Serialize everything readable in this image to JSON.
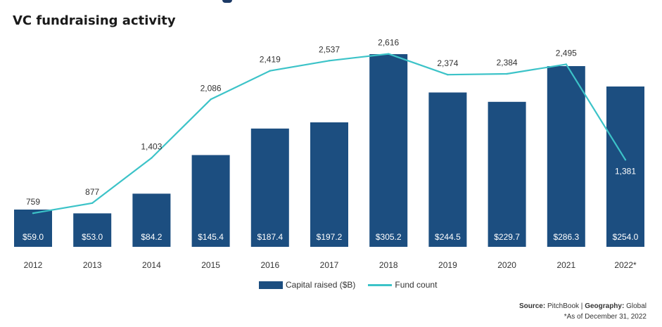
{
  "colors": {
    "bar": "#1c4e80",
    "line": "#3cc3c8",
    "text": "#333333",
    "background": "#ffffff"
  },
  "chart_data": {
    "type": "bar",
    "title": "VC fundraising activity",
    "categories": [
      "2012",
      "2013",
      "2014",
      "2015",
      "2016",
      "2017",
      "2018",
      "2019",
      "2020",
      "2021",
      "2022*"
    ],
    "series": [
      {
        "name": "Capital raised ($B)",
        "type": "bar",
        "values": [
          59.0,
          53.0,
          84.2,
          145.4,
          187.4,
          197.2,
          305.2,
          244.5,
          229.7,
          286.3,
          254.0
        ],
        "labels": [
          "$59.0",
          "$53.0",
          "$84.2",
          "$145.4",
          "$187.4",
          "$197.2",
          "$305.2",
          "$244.5",
          "$229.7",
          "$286.3",
          "$254.0"
        ]
      },
      {
        "name": "Fund count",
        "type": "line",
        "values": [
          759,
          877,
          1403,
          2086,
          2419,
          2537,
          2616,
          2374,
          2384,
          2495,
          1381
        ],
        "labels": [
          "759",
          "877",
          "1,403",
          "2,086",
          "2,419",
          "2,537",
          "2,616",
          "2,374",
          "2,384",
          "2,495",
          "1,381"
        ]
      }
    ],
    "xlabel": "",
    "ylabel": "",
    "grid": false,
    "legend_position": "bottom-center"
  },
  "legend": {
    "bar_label": "Capital raised ($B)",
    "line_label": "Fund count"
  },
  "source": {
    "source_label": "Source:",
    "source_value": "PitchBook",
    "separator": "|",
    "geography_label": "Geography:",
    "geography_value": "Global",
    "footnote": "*As of December 31, 2022"
  }
}
